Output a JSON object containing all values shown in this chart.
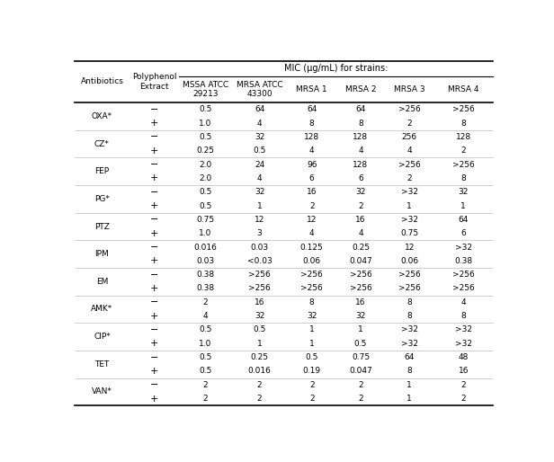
{
  "title_main": "MIC (μg/mL) for strains:",
  "col_headers_row1": [
    "",
    "",
    "MSSA ATCC\n29213",
    "MRSA ATCC\n43300",
    "MRSA 1",
    "MRSA 2",
    "MRSA 3",
    "MRSA 4"
  ],
  "col_header_ab": "Antibiotics",
  "col_header_poly": "Polyphenol\nExtract",
  "rows": [
    [
      "OXA*",
      "−",
      "0.5",
      "64",
      "64",
      "64",
      ">256",
      ">256"
    ],
    [
      "OXA*",
      "+",
      "1.0",
      "4",
      "8",
      "8",
      "2",
      "8"
    ],
    [
      "CZ*",
      "−",
      "0.5",
      "32",
      "128",
      "128",
      "256",
      "128"
    ],
    [
      "CZ*",
      "+",
      "0.25",
      "0.5",
      "4",
      "4",
      "4",
      "2"
    ],
    [
      "FEP",
      "−",
      "2.0",
      "24",
      "96",
      "128",
      ">256",
      ">256"
    ],
    [
      "FEP",
      "+",
      "2.0",
      "4",
      "6",
      "6",
      "2",
      "8"
    ],
    [
      "PG*",
      "−",
      "0.5",
      "32",
      "16",
      "32",
      ">32",
      "32"
    ],
    [
      "PG*",
      "+",
      "0.5",
      "1",
      "2",
      "2",
      "1",
      "1"
    ],
    [
      "PTZ",
      "−",
      "0.75",
      "12",
      "12",
      "16",
      ">32",
      "64"
    ],
    [
      "PTZ",
      "+",
      "1.0",
      "3",
      "4",
      "4",
      "0.75",
      "6"
    ],
    [
      "IPM",
      "−",
      "0.016",
      "0.03",
      "0.125",
      "0.25",
      "12",
      ">32"
    ],
    [
      "IPM",
      "+",
      "0.03",
      "<0.03",
      "0.06",
      "0.047",
      "0.06",
      "0.38"
    ],
    [
      "EM",
      "−",
      "0.38",
      ">256",
      ">256",
      ">256",
      ">256",
      ">256"
    ],
    [
      "EM",
      "+",
      "0.38",
      ">256",
      ">256",
      ">256",
      ">256",
      ">256"
    ],
    [
      "AMK*",
      "−",
      "2",
      "16",
      "8",
      "16",
      "8",
      "4"
    ],
    [
      "AMK*",
      "+",
      "4",
      "32",
      "32",
      "32",
      "8",
      "8"
    ],
    [
      "CIP*",
      "−",
      "0.5",
      "0.5",
      "1",
      "1",
      ">32",
      ">32"
    ],
    [
      "CIP*",
      "+",
      "1.0",
      "1",
      "1",
      "0.5",
      ">32",
      ">32"
    ],
    [
      "TET",
      "−",
      "0.5",
      "0.25",
      "0.5",
      "0.75",
      "64",
      "48"
    ],
    [
      "TET",
      "+",
      "0.5",
      "0.016",
      "0.19",
      "0.047",
      "8",
      "16"
    ],
    [
      "VAN*",
      "−",
      "2",
      "2",
      "2",
      "2",
      "1",
      "2"
    ],
    [
      "VAN*",
      "+",
      "2",
      "2",
      "2",
      "2",
      "1",
      "2"
    ]
  ],
  "bg_color": "#ffffff",
  "text_color": "#000000",
  "line_color": "#000000",
  "font_size": 6.5,
  "header_font_size": 6.5
}
